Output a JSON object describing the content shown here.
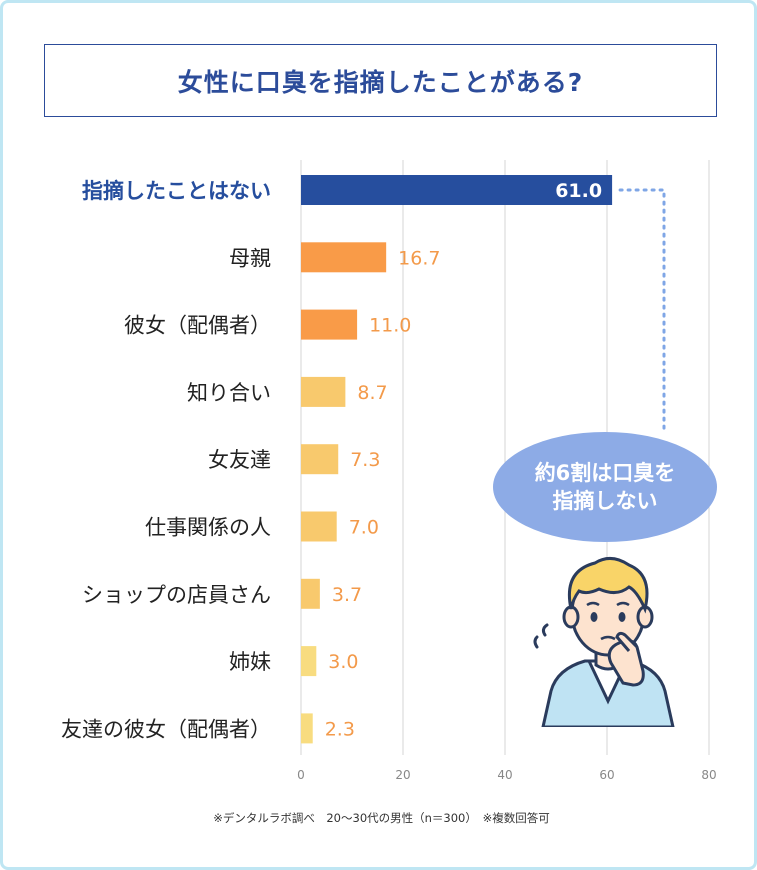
{
  "title": "女性に口臭を指摘したことがある?",
  "footnote": "※デンタルラボ調べ　20〜30代の男性（n＝300）　※複数回答可",
  "callout": {
    "line1": "約6割は口臭を",
    "line2": "指摘しない"
  },
  "colors": {
    "highlight": "#264e9e",
    "primary": "#f99b48",
    "light": "#f8c96d",
    "lighter": "#f8dc80",
    "value_text": "#f39a4a",
    "axis_text": "#888888",
    "grid": "#d6d6d6",
    "bubble": "#8dabe6",
    "dotted": "#7fa6e6"
  },
  "chart_data": {
    "type": "bar",
    "orientation": "horizontal",
    "categories": [
      "指摘したことはない",
      "母親",
      "彼女（配偶者）",
      "知り合い",
      "女友達",
      "仕事関係の人",
      "ショップの店員さん",
      "姉妹",
      "友達の彼女（配偶者）"
    ],
    "values": [
      61.0,
      16.7,
      11.0,
      8.7,
      7.3,
      7.0,
      3.7,
      3.0,
      2.3
    ],
    "value_labels": [
      "61.0",
      "16.7",
      "11.0",
      "8.7",
      "7.3",
      "7.0",
      "3.7",
      "3.0",
      "2.3"
    ],
    "xlim": [
      0,
      80
    ],
    "xticks": [
      "0",
      "20",
      "40",
      "60",
      "80"
    ],
    "grid": true
  }
}
